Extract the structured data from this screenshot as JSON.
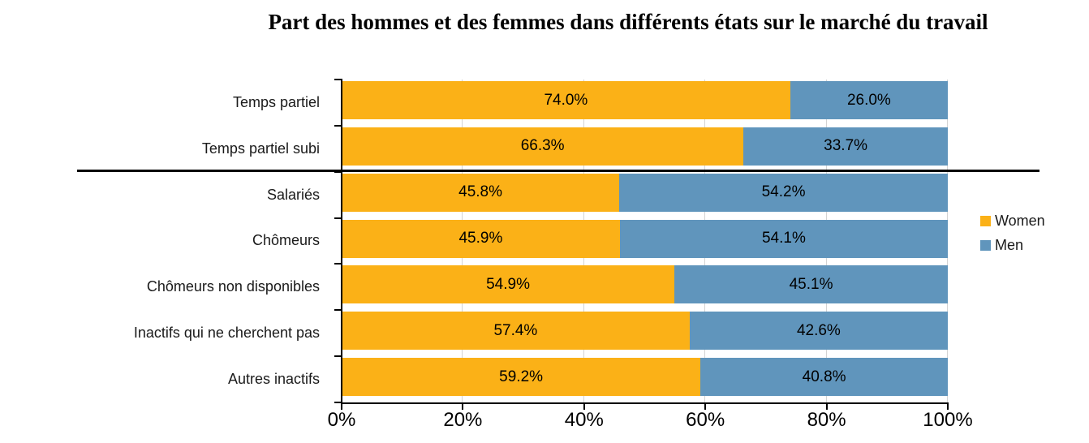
{
  "chart_data": {
    "type": "bar",
    "orientation": "horizontal",
    "stacked": true,
    "title": "Part des hommes et des femmes dans différents états sur le marché du travail",
    "categories": [
      "Temps partiel",
      "Temps partiel subi",
      "Salariés",
      "Chômeurs",
      "Chômeurs non disponibles",
      "Inactifs qui ne cherchent pas",
      "Autres inactifs"
    ],
    "series": [
      {
        "name": "Women",
        "color": "#FBB117",
        "values": [
          74.0,
          66.3,
          45.8,
          45.9,
          54.9,
          57.4,
          59.2
        ]
      },
      {
        "name": "Men",
        "color": "#6095BC",
        "values": [
          26.0,
          33.7,
          54.2,
          54.1,
          45.1,
          42.6,
          40.8
        ]
      }
    ],
    "data_label_suffix": "%",
    "xlim": [
      0,
      100
    ],
    "x_tick_values": [
      0,
      20,
      40,
      60,
      80,
      100
    ],
    "x_tick_labels": [
      "0%",
      "20%",
      "40%",
      "60%",
      "80%",
      "100%"
    ],
    "grid": true,
    "gridline_color": "#d3d3d3",
    "legend_position": "right",
    "separator_after_category_index": 1
  }
}
